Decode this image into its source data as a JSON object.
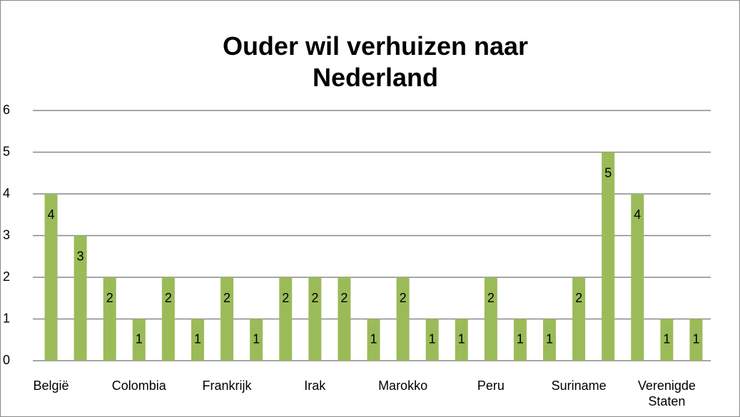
{
  "chart_data": {
    "type": "bar",
    "title": "Ouder wil verhuizen naar Nederland",
    "categories": [
      "België",
      null,
      null,
      "Colombia",
      null,
      null,
      "Frankrijk",
      null,
      null,
      "Irak",
      null,
      null,
      "Marokko",
      null,
      null,
      "Peru",
      null,
      null,
      "Suriname",
      null,
      null,
      "Verenigde Staten",
      null
    ],
    "values": [
      4,
      3,
      2,
      1,
      2,
      1,
      2,
      1,
      2,
      2,
      2,
      1,
      2,
      1,
      1,
      2,
      1,
      1,
      2,
      5,
      4,
      1,
      1
    ],
    "color": "#9bbb59",
    "ylim": [
      0,
      6
    ],
    "yticks": [
      0,
      1,
      2,
      3,
      4,
      5,
      6
    ],
    "grid": true
  }
}
